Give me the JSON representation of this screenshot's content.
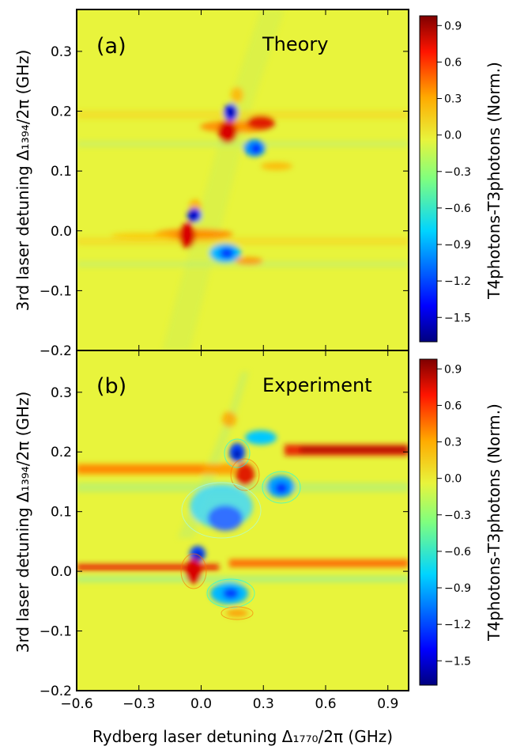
{
  "chart_data": [
    {
      "type": "heatmap",
      "panel_label": "(a)",
      "title": "Theory",
      "x_range": [
        -0.6,
        1.0
      ],
      "y_range": [
        -0.2,
        0.37
      ],
      "x_ticks": [
        "-0.6",
        "-0.3",
        "0.0",
        "0.3",
        "0.6",
        "0.9"
      ],
      "y_ticks": [
        "−0.2",
        "−0.1",
        "0.0",
        "0.1",
        "0.2",
        "0.3"
      ],
      "ylabel": "3rd laser detuning Δ₁₃₉₄/2π (GHz)",
      "colorbar": {
        "range": [
          -1.7,
          0.98
        ],
        "ticks": [
          "0.9",
          "0.6",
          "0.3",
          "0.0",
          "−0.3",
          "−0.6",
          "−0.9",
          "−1.2",
          "−1.5"
        ],
        "label": "T4photons-T3photons (Norm.)"
      },
      "features": [
        {
          "x": 0.12,
          "y": 0.19,
          "value": -1.5
        },
        {
          "x": 0.14,
          "y": 0.16,
          "value": 0.9
        },
        {
          "x": 0.3,
          "y": 0.175,
          "value": 0.7
        },
        {
          "x": 0.27,
          "y": 0.135,
          "value": -1.1
        },
        {
          "x": -0.04,
          "y": 0.025,
          "value": -1.5
        },
        {
          "x": -0.02,
          "y": 0.0,
          "value": 0.9
        },
        {
          "x": 0.1,
          "y": -0.035,
          "value": -1.0
        },
        {
          "x": 0.15,
          "y": -0.07,
          "value": 0.5
        }
      ]
    },
    {
      "type": "heatmap",
      "panel_label": "(b)",
      "title": "Experiment",
      "x_range": [
        -0.6,
        1.0
      ],
      "y_range": [
        -0.2,
        0.37
      ],
      "x_ticks": [
        "−0.6",
        "−0.3",
        "0.0",
        "0.3",
        "0.6",
        "0.9"
      ],
      "y_ticks": [
        "−0.2",
        "−0.1",
        "0.0",
        "0.1",
        "0.2",
        "0.3"
      ],
      "xlabel": "Rydberg laser detuning Δ₁₇₇₀/2π (GHz)",
      "ylabel": "3rd laser detuning Δ₁₃₉₄/2π (GHz)",
      "colorbar": {
        "range": [
          -1.7,
          0.98
        ],
        "ticks": [
          "0.9",
          "0.6",
          "0.3",
          "0.0",
          "−0.3",
          "−0.6",
          "−0.9",
          "−1.2",
          "−1.5"
        ],
        "label": "T4photons-T3photons (Norm.)"
      },
      "features": [
        {
          "x": 0.47,
          "y": 0.205,
          "value": 0.9
        },
        {
          "x": -0.3,
          "y": 0.17,
          "value": 0.5
        },
        {
          "x": 0.15,
          "y": 0.19,
          "value": -1.3
        },
        {
          "x": 0.17,
          "y": 0.17,
          "value": 0.8
        },
        {
          "x": 0.28,
          "y": 0.135,
          "value": -1.0
        },
        {
          "x": 0.05,
          "y": 0.09,
          "value": -1.1
        },
        {
          "x": -0.04,
          "y": 0.025,
          "value": -1.4
        },
        {
          "x": -0.03,
          "y": 0.0,
          "value": 0.8
        },
        {
          "x": 0.4,
          "y": 0.015,
          "value": 0.8
        },
        {
          "x": 0.1,
          "y": -0.035,
          "value": -1.0
        }
      ]
    }
  ],
  "colors": {
    "background": "#e8f43c",
    "colormap": [
      "#00007f",
      "#0000ff",
      "#007fff",
      "#00ffff",
      "#7fff7f",
      "#ffff00",
      "#ff7f00",
      "#ff0000",
      "#7f0000"
    ]
  }
}
